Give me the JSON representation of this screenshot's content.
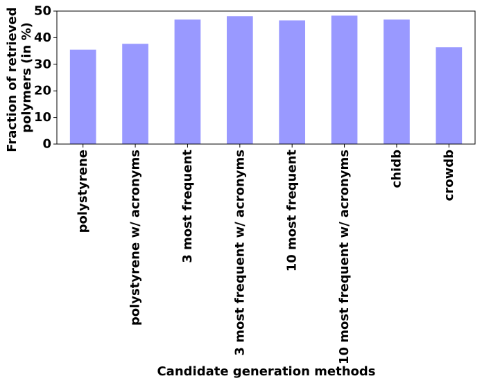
{
  "chart_data": {
    "type": "bar",
    "title": "",
    "xlabel": "Candidate generation methods",
    "ylabel_lines": [
      "Fraction of retrieved",
      "polymers (in %)"
    ],
    "categories": [
      "polystyrene",
      "polystyrene w/ acronyms",
      "3 most frequent",
      "3 most frequent w/ acronyms",
      "10 most frequent",
      "10 most frequent w/ acronyms",
      "chidb",
      "crowdb"
    ],
    "values": [
      35.5,
      37.7,
      46.8,
      48.1,
      46.5,
      48.3,
      46.8,
      36.4
    ],
    "ylim": [
      0,
      50
    ],
    "yticks": [
      0,
      10,
      20,
      30,
      40,
      50
    ],
    "ytick_labels": [
      "0",
      "10",
      "20",
      "30",
      "40",
      "50"
    ],
    "bar_color": "#9999ff",
    "grid": false,
    "legend": "none"
  }
}
